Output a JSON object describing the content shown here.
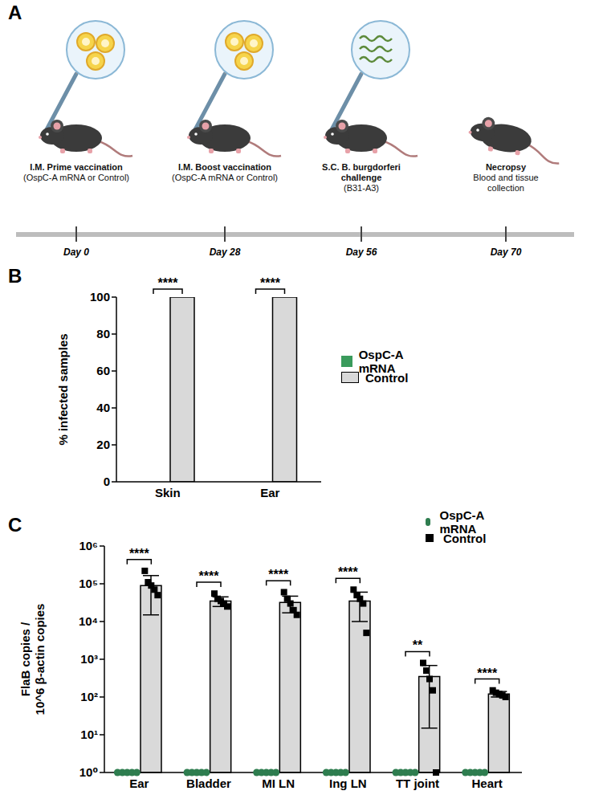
{
  "diagram": {
    "panel": "A",
    "events": [
      {
        "title": "I.M. Prime vaccination",
        "detail": "(OspC-A mRNA or Control)",
        "day": "Day 0"
      },
      {
        "title": "I.M. Boost vaccination",
        "detail": "(OspC-A mRNA or Control)",
        "day": "Day 28"
      },
      {
        "title": "S.C. B. burgdorferi challenge",
        "detail": "(B31-A3)",
        "day": "Day 56"
      },
      {
        "title": "Necropsy",
        "detail": "Blood and tissue collection",
        "day": "Day 70"
      }
    ]
  },
  "chart_data": [
    {
      "panel": "B",
      "type": "bar",
      "ylabel": "% infected samples",
      "categories": [
        "Skin",
        "Ear"
      ],
      "series": [
        {
          "name": "OspC-A mRNA",
          "color": "#3a9b5c",
          "values": [
            0,
            0
          ]
        },
        {
          "name": "Control",
          "color": "#d9d9d9",
          "values": [
            100,
            100
          ]
        }
      ],
      "ylim": [
        0,
        100
      ],
      "yticks": [
        0,
        20,
        40,
        60,
        80,
        100
      ],
      "annotations": [
        "****",
        "****"
      ],
      "legend": "right",
      "grid": false
    },
    {
      "panel": "C",
      "type": "bar",
      "ylabel": "FlaB copies / 10^6 β-actin copies",
      "categories": [
        "Ear",
        "Bladder",
        "MI LN",
        "Ing LN",
        "TT joint",
        "Heart"
      ],
      "series": [
        {
          "name": "OspC-A mRNA",
          "color": "#2e7d4f",
          "marker": "circle",
          "values": [
            1,
            1,
            1,
            1,
            1,
            1
          ],
          "points": [
            [
              1,
              1,
              1,
              1,
              1
            ],
            [
              1,
              1,
              1,
              1,
              1
            ],
            [
              1,
              1,
              1,
              1,
              1
            ],
            [
              1,
              1,
              1,
              1,
              1
            ],
            [
              1,
              1,
              1,
              1,
              1
            ],
            [
              1,
              1,
              1,
              1,
              1
            ]
          ]
        },
        {
          "name": "Control",
          "color": "#d9d9d9",
          "marker": "square",
          "values": [
            90000,
            35000,
            32000,
            35000,
            350,
            120
          ],
          "sd": [
            75000,
            10000,
            15000,
            25000,
            335,
            20
          ],
          "points": [
            [
              220000,
              110000,
              90000,
              70000,
              50000
            ],
            [
              55000,
              40000,
              35000,
              30000,
              25000
            ],
            [
              60000,
              40000,
              30000,
              20000,
              15000
            ],
            [
              70000,
              50000,
              40000,
              30000,
              5000
            ],
            [
              800,
              500,
              300,
              150,
              1
            ],
            [
              150,
              130,
              120,
              110,
              100
            ]
          ]
        }
      ],
      "log": "y",
      "ylim": [
        1,
        1000000
      ],
      "yticks": [
        {
          "value": 1,
          "label": "10⁰"
        },
        {
          "value": 10,
          "label": "10¹"
        },
        {
          "value": 100,
          "label": "10²"
        },
        {
          "value": 1000,
          "label": "10³"
        },
        {
          "value": 10000,
          "label": "10⁴"
        },
        {
          "value": 100000,
          "label": "10⁵"
        },
        {
          "value": 1000000,
          "label": "10⁶"
        }
      ],
      "annotations": [
        "****",
        "****",
        "****",
        "****",
        "**",
        "****"
      ],
      "legend": "right",
      "grid": false
    }
  ]
}
